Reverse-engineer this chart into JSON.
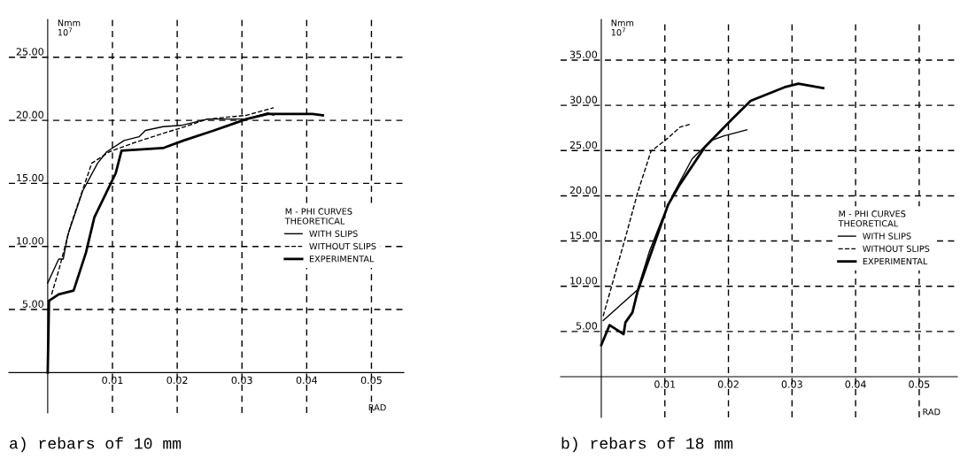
{
  "chart_data": [
    {
      "type": "line",
      "title": null,
      "ylabel": "Nmm\n10$^{7}$",
      "xlabel": "RAD",
      "legend_title": "M - PHI CURVES\nTHEORETICAL",
      "legend": "right",
      "grid": true,
      "xlim": [
        -0.006,
        0.055
      ],
      "ylim": [
        -3.2,
        28
      ],
      "xticks": [
        {
          "value": 0.01,
          "label": "0.01"
        },
        {
          "value": 0.02,
          "label": "0.02"
        },
        {
          "value": 0.03,
          "label": "0.03"
        },
        {
          "value": 0.04,
          "label": "0.04"
        },
        {
          "value": 0.05,
          "label": "0.05"
        }
      ],
      "yticks": [
        {
          "value": 5,
          "label": "5.00"
        },
        {
          "value": 10,
          "label": "10.00"
        },
        {
          "value": 15,
          "label": "15.00"
        },
        {
          "value": 20,
          "label": "20.00"
        },
        {
          "value": 25,
          "label": "25.00"
        }
      ],
      "annotations": [
        "a) rebars of 10 mm"
      ],
      "series": [
        {
          "name": "WITH SLIPS",
          "color": "#000000",
          "line_style": "solid",
          "x": [
            0,
            0.0017,
            0.0024,
            0.0031,
            0.0054,
            0.0077,
            0.0091,
            0.0118,
            0.0141,
            0.0151,
            0.0178,
            0.0206,
            0.0247,
            0.0307,
            0.034,
            0.0349
          ],
          "values": [
            7.1,
            9.0,
            9.0,
            10.9,
            14.4,
            16.6,
            17.5,
            18.4,
            18.7,
            19.2,
            19.5,
            19.6,
            20.1,
            20.1,
            20.6,
            20.4
          ]
        },
        {
          "name": "WITHOUT SLIPS",
          "color": "#000000",
          "line_style": "dashed",
          "x": [
            0.0006,
            0.0017,
            0.0035,
            0.0068,
            0.0095,
            0.0132,
            0.0174,
            0.0206,
            0.0247,
            0.0307,
            0.0349
          ],
          "values": [
            6.2,
            8.1,
            11.6,
            16.6,
            17.5,
            18.2,
            18.9,
            19.4,
            20.1,
            20.4,
            21.0
          ]
        },
        {
          "name": "EXPERIMENTAL",
          "color": "#000000",
          "line_style": "solid",
          "x": [
            0,
            0.0002,
            0.0017,
            0.004,
            0.0059,
            0.0072,
            0.0105,
            0.0114,
            0.0178,
            0.021,
            0.0257,
            0.0307,
            0.034,
            0.0409,
            0.0425
          ],
          "values": [
            0,
            5.7,
            6.2,
            6.5,
            9.5,
            12.3,
            15.8,
            17.6,
            17.8,
            18.4,
            19.2,
            20.1,
            20.5,
            20.5,
            20.4
          ]
        }
      ]
    },
    {
      "type": "line",
      "title": null,
      "ylabel": "Nmm\n10$^{7}$",
      "xlabel": "RAD",
      "legend_title": "M - PHI CURVES\nTHEORETICAL",
      "legend": "right",
      "grid": true,
      "xlim": [
        -0.0064,
        0.056
      ],
      "ylim": [
        -4.5,
        39.5
      ],
      "xticks": [
        {
          "value": 0.01,
          "label": "0.01"
        },
        {
          "value": 0.02,
          "label": "0.02"
        },
        {
          "value": 0.03,
          "label": "0.03"
        },
        {
          "value": 0.04,
          "label": "0.04"
        },
        {
          "value": 0.05,
          "label": "0.05"
        }
      ],
      "yticks": [
        {
          "value": 5,
          "label": "5.00"
        },
        {
          "value": 10,
          "label": "10.00"
        },
        {
          "value": 15,
          "label": "15.00"
        },
        {
          "value": 20,
          "label": "20.00"
        },
        {
          "value": 25,
          "label": "25.00"
        },
        {
          "value": 30,
          "label": "30.00"
        },
        {
          "value": 35,
          "label": "35.00"
        }
      ],
      "annotations": [
        "b) rebars of 18 mm"
      ],
      "series": [
        {
          "name": "WITH SLIPS",
          "color": "#000000",
          "line_style": "solid",
          "x": [
            0.0003,
            0.0057,
            0.0076,
            0.0095,
            0.0114,
            0.0143,
            0.0172,
            0.0192,
            0.0229
          ],
          "values": [
            6.2,
            9.6,
            13.9,
            17.3,
            20.3,
            24.1,
            26.1,
            26.6,
            27.3
          ]
        },
        {
          "name": "WITHOUT SLIPS",
          "color": "#000000",
          "line_style": "dashed",
          "x": [
            0.0003,
            0.004,
            0.0057,
            0.0078,
            0.0105,
            0.0124,
            0.0139
          ],
          "values": [
            6.7,
            15.9,
            20.3,
            24.9,
            26.4,
            27.6,
            27.9
          ]
        },
        {
          "name": "EXPERIMENTAL",
          "color": "#000000",
          "line_style": "solid",
          "x": [
            0,
            0.0013,
            0.0035,
            0.0038,
            0.0049,
            0.0057,
            0.0086,
            0.0105,
            0.0124,
            0.0163,
            0.0206,
            0.0235,
            0.0288,
            0.031,
            0.0349
          ],
          "values": [
            3.5,
            5.7,
            4.7,
            6.0,
            7.1,
            9.4,
            15.2,
            19.0,
            21.3,
            25.4,
            28.5,
            30.5,
            32.0,
            32.4,
            31.9
          ]
        }
      ]
    }
  ]
}
